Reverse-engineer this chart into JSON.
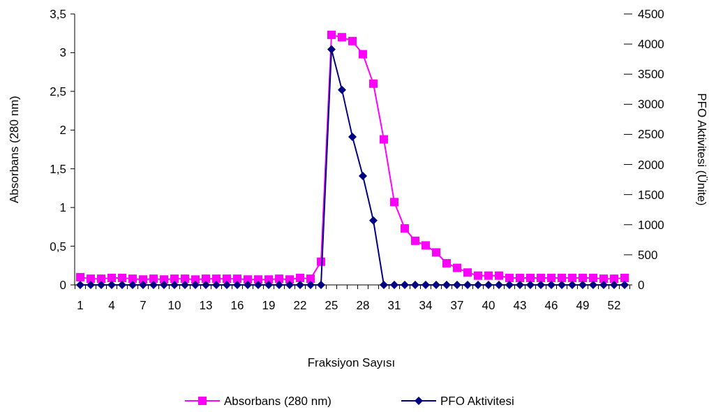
{
  "chart_data": {
    "type": "line",
    "xlabel": "Fraksiyon Sayısı",
    "ylabel": "Absorbans (280 nm)",
    "y2label": "PFO Aktivitesi (Ünite)",
    "categories": [
      "1",
      null,
      null,
      "4",
      null,
      null,
      "7",
      null,
      null,
      "10",
      null,
      null,
      "13",
      null,
      null,
      "16",
      null,
      null,
      "19",
      null,
      null,
      "22",
      null,
      null,
      "25",
      null,
      null,
      "28",
      null,
      null,
      "31",
      null,
      null,
      "34",
      null,
      null,
      "37",
      null,
      null,
      "40",
      null,
      null,
      "43",
      null,
      null,
      "46",
      null,
      null,
      "49",
      null,
      null,
      "52",
      null
    ],
    "series": [
      {
        "name": "Absorbans (280 nm)",
        "color": "#ff00ff",
        "marker": "square",
        "values": [
          0.1,
          0.08,
          0.08,
          0.09,
          0.09,
          0.08,
          0.07,
          0.08,
          0.07,
          0.08,
          0.08,
          0.07,
          0.08,
          0.08,
          0.08,
          0.08,
          0.07,
          0.07,
          0.07,
          0.08,
          0.07,
          0.09,
          0.08,
          0.3,
          3.23,
          3.2,
          3.15,
          2.98,
          2.6,
          1.88,
          1.07,
          0.73,
          0.57,
          0.51,
          0.42,
          0.28,
          0.22,
          0.16,
          0.12,
          0.12,
          0.12,
          0.09,
          0.09,
          0.09,
          0.09,
          0.09,
          0.09,
          0.09,
          0.09,
          0.09,
          0.08,
          0.08,
          0.09
        ]
      },
      {
        "name": "PFO Aktivitesi",
        "color": "#000080",
        "marker": "diamond",
        "axis": "y2",
        "values": [
          0,
          0,
          0,
          0,
          0,
          0,
          0,
          0,
          0,
          0,
          0,
          0,
          0,
          0,
          0,
          0,
          0,
          0,
          0,
          0,
          0,
          0,
          0,
          0,
          3910,
          3240,
          2460,
          1810,
          1070,
          0,
          0,
          0,
          0,
          0,
          0,
          0,
          0,
          0,
          0,
          0,
          0,
          0,
          0,
          0,
          0,
          0,
          0,
          0,
          0,
          0,
          0,
          0,
          0
        ]
      }
    ],
    "ylim": [
      0,
      3.5
    ],
    "yticks": [
      0,
      {
        "value": 0.5,
        "label": "0,5"
      },
      1,
      {
        "value": 1.5,
        "label": "1,5"
      },
      2,
      {
        "value": 2.5,
        "label": "2,5"
      },
      3,
      {
        "value": 3.5,
        "label": "3,5"
      }
    ],
    "y2lim": [
      0,
      4500
    ],
    "y2ticks": [
      0,
      500,
      1000,
      1500,
      2000,
      2500,
      3000,
      3500,
      4000,
      4500
    ],
    "grid": false,
    "legend": "bottom"
  }
}
